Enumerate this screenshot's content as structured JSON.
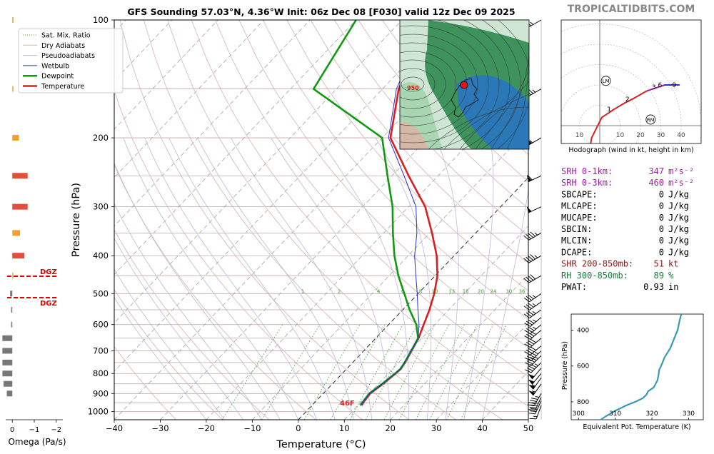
{
  "header": {
    "title": "GFS Sounding 57.03°N, 4.36°W Init: 06z Dec 08 [F030] valid 12z Dec 09 2025",
    "brand": "TROPICALTIDBITS.COM"
  },
  "colors": {
    "temperature": "#d62020",
    "dewpoint": "#119911",
    "wetbulb": "#2233cc",
    "isobar": "#c0a8a8",
    "isotherm_dashed": "#a0a0a0",
    "dry_adiabat": "#d8b0b0",
    "pseudoadiabat": "#b8b8e0",
    "mixing_ratio": "#3c9a3c",
    "srh": "#a020a0",
    "shr": "#8b1a1a",
    "rh": "#1a7a3a",
    "omega_positive": "#e0503c",
    "omega_weak": "#f0a030",
    "omega_negative": "#777777",
    "dgz": "#dd0000",
    "theta_e": "#3a98b8"
  },
  "skewt": {
    "xlabel": "Temperature (°C)",
    "ylabel": "Pressure (hPa)",
    "surface_label": "46F",
    "mixing_ratio_labels": [
      "1",
      "2",
      "4",
      "6",
      "8",
      "10",
      "13",
      "16",
      "20",
      "24",
      "30",
      "36"
    ],
    "legend": [
      {
        "label": "Sat. Mix. Ratio",
        "style": "dotted",
        "color": "#3c9a3c"
      },
      {
        "label": "Dry Adiabats",
        "style": "solid",
        "color": "#d8b0b0"
      },
      {
        "label": "Pseudoadiabats",
        "style": "solid",
        "color": "#b8b8e0"
      },
      {
        "label": "Wetbulb",
        "style": "solid",
        "color": "#2233cc"
      },
      {
        "label": "Dewpoint",
        "style": "thick",
        "color": "#119911"
      },
      {
        "label": "Temperature",
        "style": "thick",
        "color": "#d62020"
      }
    ]
  },
  "omega": {
    "xlabel": "Omega (Pa/s)",
    "ticks": [
      "0",
      "−1",
      "−2"
    ],
    "dgz_label": "DGZ"
  },
  "map": {
    "low_label": "950"
  },
  "hodograph": {
    "caption": "Hodograph (wind in kt, height in km)",
    "x_ticks": [
      "10",
      "10",
      "20",
      "30",
      "40"
    ],
    "height_labels": [
      "1",
      "2",
      "3",
      "6",
      "9"
    ],
    "markers": [
      "LM",
      "RM"
    ]
  },
  "indices": [
    {
      "label": "SRH 0-1km:",
      "value": "347",
      "unit": "m²s⁻²",
      "color": "#a020a0"
    },
    {
      "label": "SRH 0-3km:",
      "value": "460",
      "unit": "m²s⁻²",
      "color": "#a020a0"
    },
    {
      "label": "SBCAPE:",
      "value": "0",
      "unit": "J/kg",
      "color": "#000000"
    },
    {
      "label": "MLCAPE:",
      "value": "0",
      "unit": "J/kg",
      "color": "#000000"
    },
    {
      "label": "MUCAPE:",
      "value": "0",
      "unit": "J/kg",
      "color": "#000000"
    },
    {
      "label": "SBCIN:",
      "value": "0",
      "unit": "J/kg",
      "color": "#000000"
    },
    {
      "label": "MLCIN:",
      "value": "0",
      "unit": "J/kg",
      "color": "#000000"
    },
    {
      "label": "DCAPE:",
      "value": "0",
      "unit": "J/kg",
      "color": "#000000"
    },
    {
      "label": "SHR 200-850mb:",
      "value": "51",
      "unit": "kt",
      "color": "#8b1a1a"
    },
    {
      "label": "RH 300-850mb:",
      "value": "89",
      "unit": "%",
      "color": "#1a7a3a"
    },
    {
      "label": "PWAT:",
      "value": "0.93",
      "unit": "in",
      "color": "#000000"
    }
  ],
  "theta_e_panel": {
    "xlabel": "Equivalent Pot. Temperature (K)",
    "ylabel": "Pressure (hPa)"
  },
  "chart_data": [
    {
      "type": "line",
      "title": "GFS Sounding 57.03°N, 4.36°W Init: 06z Dec 08 [F030] valid 12z Dec 09 2025",
      "xlabel": "Temperature (°C)",
      "ylabel": "Pressure (hPa)",
      "xlim": [
        -40,
        50
      ],
      "ylim": [
        1050,
        100
      ],
      "y_scale": "log",
      "x_ticks": [
        -40,
        -30,
        -20,
        -10,
        0,
        10,
        20,
        30,
        40,
        50
      ],
      "y_ticks": [
        100,
        200,
        300,
        400,
        500,
        600,
        700,
        800,
        900,
        1000
      ],
      "series": [
        {
          "name": "Temperature",
          "color": "#d62020",
          "p": [
            965,
            940,
            900,
            850,
            800,
            780,
            750,
            700,
            650,
            600,
            550,
            500,
            450,
            400,
            350,
            300,
            250,
            200,
            150,
            100
          ],
          "t": [
            10.8,
            10.5,
            10.2,
            11.0,
            11.6,
            11.8,
            11.4,
            10.4,
            9.3,
            7.6,
            5.8,
            3.5,
            0.5,
            -3.8,
            -9.5,
            -16.4,
            -26.4,
            -38.2,
            -46.5,
            -54.0
          ]
        },
        {
          "name": "Dewpoint",
          "color": "#119911",
          "p": [
            965,
            940,
            900,
            850,
            800,
            780,
            750,
            700,
            650,
            600,
            550,
            500,
            450,
            400,
            350,
            300,
            250,
            200,
            150,
            100
          ],
          "t": [
            10.5,
            10.3,
            10.0,
            10.8,
            11.5,
            11.7,
            11.3,
            10.3,
            9.2,
            6.0,
            1.5,
            -3.0,
            -8.0,
            -13.0,
            -18.0,
            -23.5,
            -31.0,
            -40.0,
            -65.0,
            -70.0
          ]
        },
        {
          "name": "Wetbulb",
          "color": "#2233cc",
          "p": [
            965,
            940,
            900,
            850,
            800,
            780,
            750,
            700,
            650,
            600,
            550,
            500,
            450,
            400,
            350,
            300,
            250,
            200,
            150,
            100
          ],
          "t": [
            10.6,
            10.4,
            10.1,
            10.9,
            11.5,
            11.7,
            11.3,
            10.3,
            9.2,
            6.6,
            3.3,
            -0.2,
            -4.2,
            -8.6,
            -12.8,
            -18.4,
            -27.4,
            -38.6,
            -47.0,
            -54.5
          ]
        }
      ],
      "wind_barbs": [
        {
          "p": 965,
          "dir": 200,
          "spd": 15
        },
        {
          "p": 940,
          "dir": 205,
          "spd": 30
        },
        {
          "p": 920,
          "dir": 205,
          "spd": 40
        },
        {
          "p": 900,
          "dir": 210,
          "spd": 45
        },
        {
          "p": 850,
          "dir": 215,
          "spd": 55
        },
        {
          "p": 820,
          "dir": 215,
          "spd": 55
        },
        {
          "p": 800,
          "dir": 220,
          "spd": 50
        },
        {
          "p": 775,
          "dir": 220,
          "spd": 50
        },
        {
          "p": 750,
          "dir": 225,
          "spd": 45
        },
        {
          "p": 720,
          "dir": 225,
          "spd": 45
        },
        {
          "p": 700,
          "dir": 225,
          "spd": 45
        },
        {
          "p": 680,
          "dir": 230,
          "spd": 40
        },
        {
          "p": 650,
          "dir": 230,
          "spd": 40
        },
        {
          "p": 620,
          "dir": 230,
          "spd": 40
        },
        {
          "p": 600,
          "dir": 230,
          "spd": 35
        },
        {
          "p": 575,
          "dir": 230,
          "spd": 35
        },
        {
          "p": 550,
          "dir": 235,
          "spd": 35
        },
        {
          "p": 525,
          "dir": 235,
          "spd": 35
        },
        {
          "p": 500,
          "dir": 235,
          "spd": 35
        },
        {
          "p": 450,
          "dir": 240,
          "spd": 40
        },
        {
          "p": 400,
          "dir": 240,
          "spd": 45
        },
        {
          "p": 350,
          "dir": 240,
          "spd": 45
        },
        {
          "p": 300,
          "dir": 245,
          "spd": 50
        },
        {
          "p": 250,
          "dir": 245,
          "spd": 60
        },
        {
          "p": 200,
          "dir": 240,
          "spd": 55
        },
        {
          "p": 150,
          "dir": 240,
          "spd": 35
        },
        {
          "p": 100,
          "dir": 240,
          "spd": 25
        }
      ]
    },
    {
      "type": "bar",
      "xlabel": "Omega (Pa/s)",
      "xlim": [
        0.3,
        -2.3
      ],
      "x_ticks": [
        0,
        -1,
        -2
      ],
      "orientation": "horizontal",
      "p": [
        100,
        150,
        200,
        250,
        300,
        350,
        400,
        450,
        500,
        550,
        600,
        650,
        700,
        750,
        800,
        850,
        900
      ],
      "values": [
        -0.05,
        -0.05,
        -0.3,
        -0.7,
        -0.7,
        -0.35,
        -0.55,
        -0.05,
        0.1,
        0.05,
        0.05,
        0.45,
        0.45,
        0.45,
        0.45,
        0.4,
        0.25
      ],
      "dgz_p": [
        460,
        515
      ]
    },
    {
      "type": "line",
      "xlabel": "Hodograph (wind in kt, height in km)",
      "u_kt": [
        -2,
        -5,
        -4,
        1,
        7,
        12,
        16,
        23,
        29,
        32,
        39
      ],
      "v_kt": [
        -19,
        -12,
        -6,
        4,
        8,
        11,
        13,
        17,
        19,
        20,
        20
      ],
      "km": [
        0,
        0.25,
        0.5,
        0.75,
        1,
        1.5,
        2,
        2.5,
        3,
        6,
        9
      ],
      "segment_colors": [
        "#d62020",
        "#d62020",
        "#d62020",
        "#d62020",
        "#d62020",
        "#d62020",
        "#d62020",
        "#d62020",
        "#a020a0",
        "#a020a0",
        "#2233cc"
      ],
      "rings_kt": [
        10,
        20,
        30,
        40,
        50
      ],
      "storm_motion": {
        "LM": [
          3,
          22
        ],
        "RM": [
          25,
          3
        ]
      },
      "height_labels": [
        "1",
        "2",
        "3",
        "6",
        "9"
      ]
    },
    {
      "type": "line",
      "xlabel": "Equivalent Pot. Temperature (K)",
      "ylabel": "Pressure (hPa)",
      "xlim": [
        298,
        334
      ],
      "ylim": [
        900,
        310
      ],
      "x_ticks": [
        300,
        310,
        320,
        330
      ],
      "y_ticks": [
        400,
        600,
        800
      ],
      "p": [
        900,
        880,
        850,
        820,
        800,
        780,
        760,
        740,
        720,
        700,
        680,
        650,
        620,
        600,
        550,
        500,
        450,
        400,
        350,
        310
      ],
      "theta_e": [
        306,
        307.5,
        310,
        313,
        315.5,
        317.5,
        318.5,
        319,
        320.5,
        321,
        321.5,
        321.8,
        322,
        322.5,
        323.5,
        325,
        326,
        327,
        327.5,
        328
      ]
    }
  ]
}
